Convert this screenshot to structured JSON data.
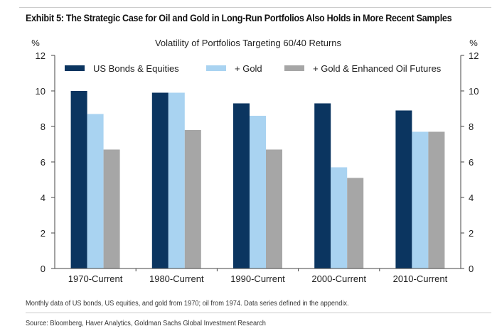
{
  "title": "Exhibit 5: The Strategic Case for Oil and Gold in Long-Run Portfolios Also Holds in More Recent Samples",
  "footnote": "Monthly data of US bonds, US equities, and gold from 1970; oil from 1974. Data series defined in the appendix.",
  "source": "Source: Bloomberg, Haver Analytics, Goldman Sachs Global Investment Research",
  "chart_data": {
    "type": "bar",
    "title": "Volatility of Portfolios Targeting 60/40 Returns",
    "ylabel_left": "%",
    "ylabel_right": "%",
    "ylim": [
      0,
      12
    ],
    "yticks": [
      0,
      2,
      4,
      6,
      8,
      10,
      12
    ],
    "categories": [
      "1970-Current",
      "1980-Current",
      "1990-Current",
      "2000-Current",
      "2010-Current"
    ],
    "legend_position": "top",
    "series": [
      {
        "name": "US Bonds & Equities",
        "color": "#0b3560",
        "values": [
          10.0,
          9.9,
          9.3,
          9.3,
          8.9
        ]
      },
      {
        "name": "+ Gold",
        "color": "#a9d3f1",
        "values": [
          8.7,
          9.9,
          8.6,
          5.7,
          7.7
        ]
      },
      {
        "name": "+ Gold & Enhanced Oil Futures",
        "color": "#a6a6a6",
        "values": [
          6.7,
          7.8,
          6.7,
          5.1,
          7.7
        ]
      }
    ]
  }
}
